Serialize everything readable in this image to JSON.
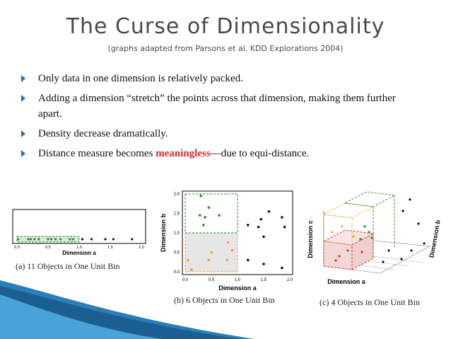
{
  "slide": {
    "title": "The Curse of Dimensionality",
    "subtitle": "(graphs adapted from Parsons et al. KDD Explorations 2004)"
  },
  "bullets": {
    "b1": "Only data in one dimension is relatively packed.",
    "b2": "Adding a dimension “stretch” the  points across that dimension, making them further apart.",
    "b3": "Density decrease dramatically.",
    "b4_pre": "Distance measure becomes ",
    "b4_emph": "meaningless",
    "b4_post": "—due to equi-distance."
  },
  "figures": {
    "a": {
      "caption": "(a) 11 Objects in One Unit Bin",
      "axis_label": "Dimension a",
      "ticks": [
        "0.0",
        "0.5",
        "1.0",
        "1.5",
        "2.0"
      ],
      "chart_data": {
        "type": "scatter",
        "xlabel": "Dimension a",
        "xlim": [
          0,
          2
        ],
        "x": [
          0.02,
          0.18,
          0.22,
          0.28,
          0.35,
          0.5,
          0.55,
          0.62,
          0.7,
          0.85,
          0.9,
          1.05,
          1.2,
          1.42,
          1.55,
          1.85
        ],
        "highlight_bin": [
          0,
          1
        ]
      }
    },
    "b": {
      "caption": "(b) 6 Objects in One Unit Bin",
      "xlabel": "Dimension a",
      "ylabel": "Dimension b",
      "xticks": [
        "0.0",
        "0.5",
        "1.0",
        "1.5",
        "2.0"
      ],
      "yticks": [
        "0.0",
        "0.5",
        "1.0",
        "1.5",
        "2.0"
      ],
      "chart_data": {
        "type": "scatter",
        "xlabel": "Dimension a",
        "ylabel": "Dimension b",
        "xlim": [
          0,
          2
        ],
        "ylim": [
          0,
          2
        ],
        "series": [
          {
            "color": "#2a8a2a",
            "points": [
              [
                0.3,
                1.95
              ],
              [
                0.45,
                1.65
              ],
              [
                0.28,
                1.45
              ],
              [
                0.38,
                1.4
              ],
              [
                0.65,
                1.45
              ],
              [
                0.35,
                1.2
              ]
            ]
          },
          {
            "color": "#f0a030",
            "points": [
              [
                0.05,
                0.3
              ],
              [
                0.12,
                0.05
              ],
              [
                0.45,
                0.3
              ],
              [
                0.5,
                0.5
              ],
              [
                0.9,
                0.55
              ],
              [
                0.82,
                0.75
              ],
              [
                0.8,
                0.3
              ]
            ]
          },
          {
            "color": "#111111",
            "points": [
              [
                1.6,
                1.55
              ],
              [
                1.85,
                1.4
              ],
              [
                1.45,
                1.35
              ],
              [
                1.2,
                1.2
              ],
              [
                1.4,
                1.15
              ],
              [
                1.9,
                1.15
              ],
              [
                1.5,
                0.9
              ],
              [
                1.2,
                0.3
              ],
              [
                1.5,
                0.2
              ],
              [
                1.85,
                0.1
              ]
            ]
          }
        ]
      }
    },
    "c": {
      "caption": "(c) 4 Objects in One Unit Bin",
      "xlabel": "Dimension a",
      "ylabel": "Dimension b",
      "zlabel": "Dimension c"
    }
  }
}
